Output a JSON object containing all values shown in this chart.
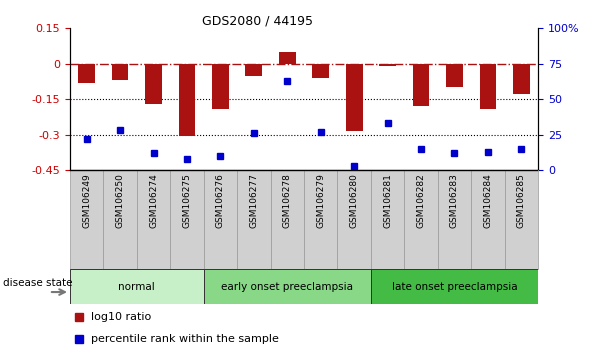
{
  "title": "GDS2080 / 44195",
  "samples": [
    "GSM106249",
    "GSM106250",
    "GSM106274",
    "GSM106275",
    "GSM106276",
    "GSM106277",
    "GSM106278",
    "GSM106279",
    "GSM106280",
    "GSM106281",
    "GSM106282",
    "GSM106283",
    "GSM106284",
    "GSM106285"
  ],
  "log10_ratio": [
    -0.08,
    -0.07,
    -0.17,
    -0.305,
    -0.19,
    -0.05,
    0.05,
    -0.06,
    -0.285,
    -0.01,
    -0.18,
    -0.1,
    -0.19,
    -0.13
  ],
  "percentile_rank": [
    22,
    28,
    12,
    8,
    10,
    26,
    63,
    27,
    3,
    33,
    15,
    12,
    13,
    15
  ],
  "groups": [
    {
      "label": "normal",
      "start": 0,
      "end": 4,
      "color": "#c8f0c8"
    },
    {
      "label": "early onset preeclampsia",
      "start": 4,
      "end": 9,
      "color": "#88d888"
    },
    {
      "label": "late onset preeclampsia",
      "start": 9,
      "end": 14,
      "color": "#44bb44"
    }
  ],
  "bar_color": "#aa1111",
  "dot_color": "#0000cc",
  "ylim_left": [
    -0.45,
    0.15
  ],
  "ylim_right": [
    0,
    100
  ],
  "left_yticks": [
    -0.45,
    -0.3,
    -0.15,
    0.0,
    0.15
  ],
  "right_yticks": [
    0,
    25,
    50,
    75,
    100
  ],
  "hline_y": 0,
  "dotted_lines": [
    -0.15,
    -0.3
  ],
  "left_label_color": "#cc0000",
  "right_label_color": "#0000cc",
  "legend_log10": "log10 ratio",
  "legend_percentile": "percentile rank within the sample",
  "disease_state_label": "disease state",
  "sample_box_color": "#d0d0d0",
  "sample_box_edge": "#999999"
}
